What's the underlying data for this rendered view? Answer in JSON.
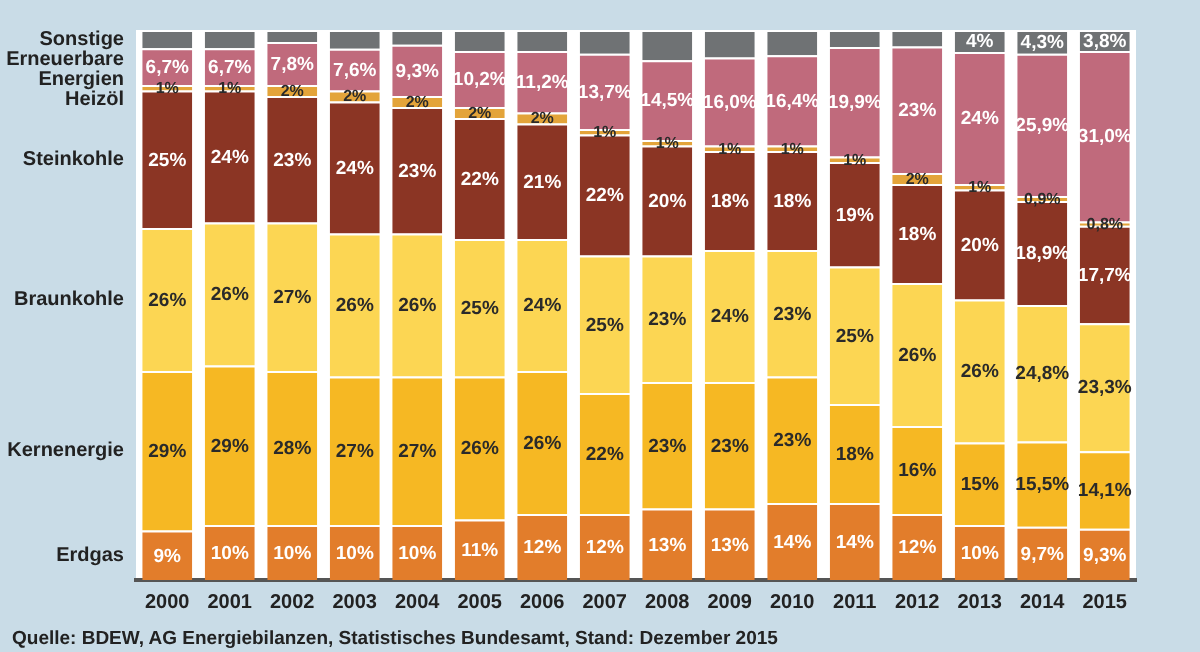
{
  "chart_data": {
    "type": "bar",
    "stacked": true,
    "legend": false,
    "grid": false,
    "tick_labels": "x",
    "ylim": [
      0,
      100
    ],
    "categories": [
      "2000",
      "2001",
      "2002",
      "2003",
      "2004",
      "2005",
      "2006",
      "2007",
      "2008",
      "2009",
      "2010",
      "2011",
      "2012",
      "2013",
      "2014",
      "2015"
    ],
    "series": [
      {
        "name": "Erdgas",
        "color": "#e27d2b",
        "values": [
          9,
          10,
          10,
          10,
          10,
          11,
          12,
          12,
          13,
          13,
          14,
          14,
          12,
          10,
          9.7,
          9.3
        ],
        "value_labels": [
          "9%",
          "10%",
          "10%",
          "10%",
          "10%",
          "11%",
          "12%",
          "12%",
          "13%",
          "13%",
          "14%",
          "14%",
          "12%",
          "10%",
          "9,7%",
          "9,3%"
        ]
      },
      {
        "name": "Kernenergie",
        "color": "#f6b823",
        "values": [
          29,
          29,
          28,
          27,
          27,
          26,
          26,
          22,
          23,
          23,
          23,
          18,
          16,
          15,
          15.5,
          14.1
        ],
        "value_labels": [
          "29%",
          "29%",
          "28%",
          "27%",
          "27%",
          "26%",
          "26%",
          "22%",
          "23%",
          "23%",
          "23%",
          "18%",
          "16%",
          "15%",
          "15,5%",
          "14,1%"
        ]
      },
      {
        "name": "Braunkohle",
        "color": "#fcd653",
        "values": [
          26,
          26,
          27,
          26,
          26,
          25,
          24,
          25,
          23,
          24,
          23,
          25,
          26,
          26,
          24.8,
          23.3
        ],
        "value_labels": [
          "26%",
          "26%",
          "27%",
          "26%",
          "26%",
          "25%",
          "24%",
          "25%",
          "23%",
          "24%",
          "23%",
          "25%",
          "26%",
          "26%",
          "24,8%",
          "23,3%"
        ]
      },
      {
        "name": "Steinkohle",
        "color": "#8b3524",
        "values": [
          25,
          24,
          23,
          24,
          23,
          22,
          21,
          22,
          20,
          18,
          18,
          19,
          18,
          20,
          18.9,
          17.7
        ],
        "value_labels": [
          "25%",
          "24%",
          "23%",
          "24%",
          "23%",
          "22%",
          "21%",
          "22%",
          "20%",
          "18%",
          "18%",
          "19%",
          "18%",
          "20%",
          "18,9%",
          "17,7%"
        ]
      },
      {
        "name": "Heizöl",
        "color": "#e3a43a",
        "values": [
          1,
          1,
          2,
          2,
          2,
          2,
          2,
          1,
          1,
          1,
          1,
          1,
          2,
          1,
          0.9,
          0.8
        ],
        "value_labels": [
          "1%",
          "1%",
          "2%",
          "2%",
          "2%",
          "2%",
          "2%",
          "1%",
          "1%",
          "1%",
          "1%",
          "1%",
          "2%",
          "1%",
          "0,9%",
          "0,8%"
        ]
      },
      {
        "name": "Erneuerbare Energien",
        "color": "#c06a7c",
        "values": [
          6.7,
          6.7,
          7.8,
          7.6,
          9.3,
          10.2,
          11.2,
          13.7,
          14.5,
          16.0,
          16.4,
          19.9,
          23,
          24,
          25.9,
          31.0
        ],
        "value_labels": [
          "6,7%",
          "6,7%",
          "7,8%",
          "7,6%",
          "9,3%",
          "10,2%",
          "11,2%",
          "13,7%",
          "14,5%",
          "16,0%",
          "16,4%",
          "19,9%",
          "23%",
          "24%",
          "25,9%",
          "31,0%"
        ]
      },
      {
        "name": "Sonstige",
        "color": "#6f7274",
        "values": [
          3.3,
          3.3,
          2.2,
          3.4,
          2.7,
          3.8,
          3.8,
          4.3,
          5.5,
          5,
          4.6,
          3.1,
          3,
          4,
          4.3,
          3.8
        ],
        "value_labels": [
          null,
          null,
          null,
          null,
          null,
          null,
          null,
          null,
          null,
          null,
          null,
          null,
          null,
          "4%",
          "4,3%",
          "3,8%"
        ]
      }
    ],
    "annotations": [
      "Quelle: BDEW, AG Energiebilanzen, Statistisches Bundesamt, Stand: Dezember 2015"
    ]
  }
}
